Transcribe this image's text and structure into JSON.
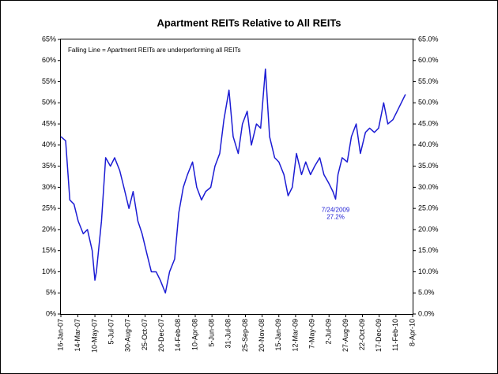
{
  "chart_data": {
    "type": "line",
    "title": "Apartment REITs Relative to All REITs",
    "note": "Falling Line = Apartment REITs are underperforming all REITs",
    "x": [
      "2007-01-16",
      "2007-02-01",
      "2007-02-15",
      "2007-03-01",
      "2007-03-15",
      "2007-04-01",
      "2007-04-15",
      "2007-05-01",
      "2007-05-10",
      "2007-05-15",
      "2007-06-01",
      "2007-06-15",
      "2007-07-01",
      "2007-07-15",
      "2007-08-01",
      "2007-08-15",
      "2007-09-01",
      "2007-09-15",
      "2007-10-01",
      "2007-10-15",
      "2007-11-01",
      "2007-11-15",
      "2007-12-01",
      "2007-12-15",
      "2008-01-01",
      "2008-01-15",
      "2008-02-01",
      "2008-02-15",
      "2008-03-01",
      "2008-03-15",
      "2008-04-01",
      "2008-04-15",
      "2008-05-01",
      "2008-05-15",
      "2008-06-01",
      "2008-06-15",
      "2008-07-01",
      "2008-07-15",
      "2008-08-01",
      "2008-08-15",
      "2008-09-01",
      "2008-09-15",
      "2008-10-01",
      "2008-10-15",
      "2008-11-01",
      "2008-11-15",
      "2008-12-01",
      "2008-12-15",
      "2009-01-01",
      "2009-01-15",
      "2009-02-01",
      "2009-02-15",
      "2009-03-01",
      "2009-03-15",
      "2009-04-01",
      "2009-04-15",
      "2009-05-01",
      "2009-05-15",
      "2009-06-01",
      "2009-06-15",
      "2009-07-01",
      "2009-07-15",
      "2009-07-24",
      "2009-08-01",
      "2009-08-15",
      "2009-09-01",
      "2009-09-15",
      "2009-10-01",
      "2009-10-15",
      "2009-11-01",
      "2009-11-15",
      "2009-12-01",
      "2009-12-15",
      "2010-01-01",
      "2010-01-15",
      "2010-02-01",
      "2010-02-15",
      "2010-03-01",
      "2010-03-15"
    ],
    "series": [
      {
        "name": "Apartment REITs / All REITs",
        "color": "#1c1cd4",
        "values": [
          42,
          41,
          27,
          26,
          22,
          19,
          20,
          15,
          8,
          10,
          22,
          37,
          35,
          37,
          34,
          30,
          25,
          29,
          22,
          19,
          14,
          10,
          10,
          8,
          5,
          10,
          13,
          24,
          30,
          33,
          36,
          30,
          27,
          29,
          30,
          35,
          38,
          46,
          53,
          42,
          38,
          45,
          48,
          40,
          45,
          44,
          58,
          42,
          37,
          36,
          33,
          28,
          30,
          38,
          33,
          36,
          33,
          35,
          37,
          33,
          31,
          29,
          27.2,
          33,
          37,
          36,
          42,
          45,
          38,
          43,
          44,
          43,
          44,
          50,
          45,
          46,
          48,
          50,
          52
        ]
      }
    ],
    "annotations": [
      {
        "x": "2009-07-24",
        "value": 27.2,
        "text": "7/24/2009",
        "value_label": "27.2%"
      }
    ],
    "xlim": [
      "2007-01-16",
      "2010-04-08"
    ],
    "xticks": [
      {
        "value": "2007-01-16",
        "label": "16-Jan-07"
      },
      {
        "value": "2007-03-14",
        "label": "14-Mar-07"
      },
      {
        "value": "2007-05-10",
        "label": "10-May-07"
      },
      {
        "value": "2007-07-05",
        "label": "5-Jul-07"
      },
      {
        "value": "2007-08-30",
        "label": "30-Aug-07"
      },
      {
        "value": "2007-10-25",
        "label": "25-Oct-07"
      },
      {
        "value": "2007-12-20",
        "label": "20-Dec-07"
      },
      {
        "value": "2008-02-14",
        "label": "14-Feb-08"
      },
      {
        "value": "2008-04-10",
        "label": "10-Apr-08"
      },
      {
        "value": "2008-06-05",
        "label": "5-Jun-08"
      },
      {
        "value": "2008-07-31",
        "label": "31-Jul-08"
      },
      {
        "value": "2008-09-25",
        "label": "25-Sep-08"
      },
      {
        "value": "2008-11-20",
        "label": "20-Nov-08"
      },
      {
        "value": "2009-01-15",
        "label": "15-Jan-09"
      },
      {
        "value": "2009-03-12",
        "label": "12-Mar-09"
      },
      {
        "value": "2009-05-07",
        "label": "7-May-09"
      },
      {
        "value": "2009-07-02",
        "label": "2-Jul-09"
      },
      {
        "value": "2009-08-27",
        "label": "27-Aug-09"
      },
      {
        "value": "2009-10-22",
        "label": "22-Oct-09"
      },
      {
        "value": "2009-12-17",
        "label": "17-Dec-09"
      },
      {
        "value": "2010-02-11",
        "label": "11-Feb-10"
      },
      {
        "value": "2010-04-08",
        "label": "8-Apr-10"
      }
    ],
    "ylim": [
      0,
      65
    ],
    "yticks": [
      {
        "value": 0,
        "label": "0%"
      },
      {
        "value": 5,
        "label": "5%"
      },
      {
        "value": 10,
        "label": "10%"
      },
      {
        "value": 15,
        "label": "15%"
      },
      {
        "value": 20,
        "label": "20%"
      },
      {
        "value": 25,
        "label": "25%"
      },
      {
        "value": 30,
        "label": "30%"
      },
      {
        "value": 35,
        "label": "35%"
      },
      {
        "value": 40,
        "label": "40%"
      },
      {
        "value": 45,
        "label": "45%"
      },
      {
        "value": 50,
        "label": "50%"
      },
      {
        "value": 55,
        "label": "55%"
      },
      {
        "value": 60,
        "label": "60%"
      },
      {
        "value": 65,
        "label": "65%"
      }
    ],
    "y2lim": [
      0,
      65
    ],
    "y2ticks": [
      {
        "value": 0,
        "label": "0.0%"
      },
      {
        "value": 5,
        "label": "5.0%"
      },
      {
        "value": 10,
        "label": "10.0%"
      },
      {
        "value": 15,
        "label": "15.0%"
      },
      {
        "value": 20,
        "label": "20.0%"
      },
      {
        "value": 25,
        "label": "25.0%"
      },
      {
        "value": 30,
        "label": "30.0%"
      },
      {
        "value": 35,
        "label": "35.0%"
      },
      {
        "value": 40,
        "label": "40.0%"
      },
      {
        "value": 45,
        "label": "45.0%"
      },
      {
        "value": 50,
        "label": "50.0%"
      },
      {
        "value": 55,
        "label": "55.0%"
      },
      {
        "value": 60,
        "label": "60.0%"
      },
      {
        "value": 65,
        "label": "65.0%"
      }
    ],
    "grid": false
  }
}
